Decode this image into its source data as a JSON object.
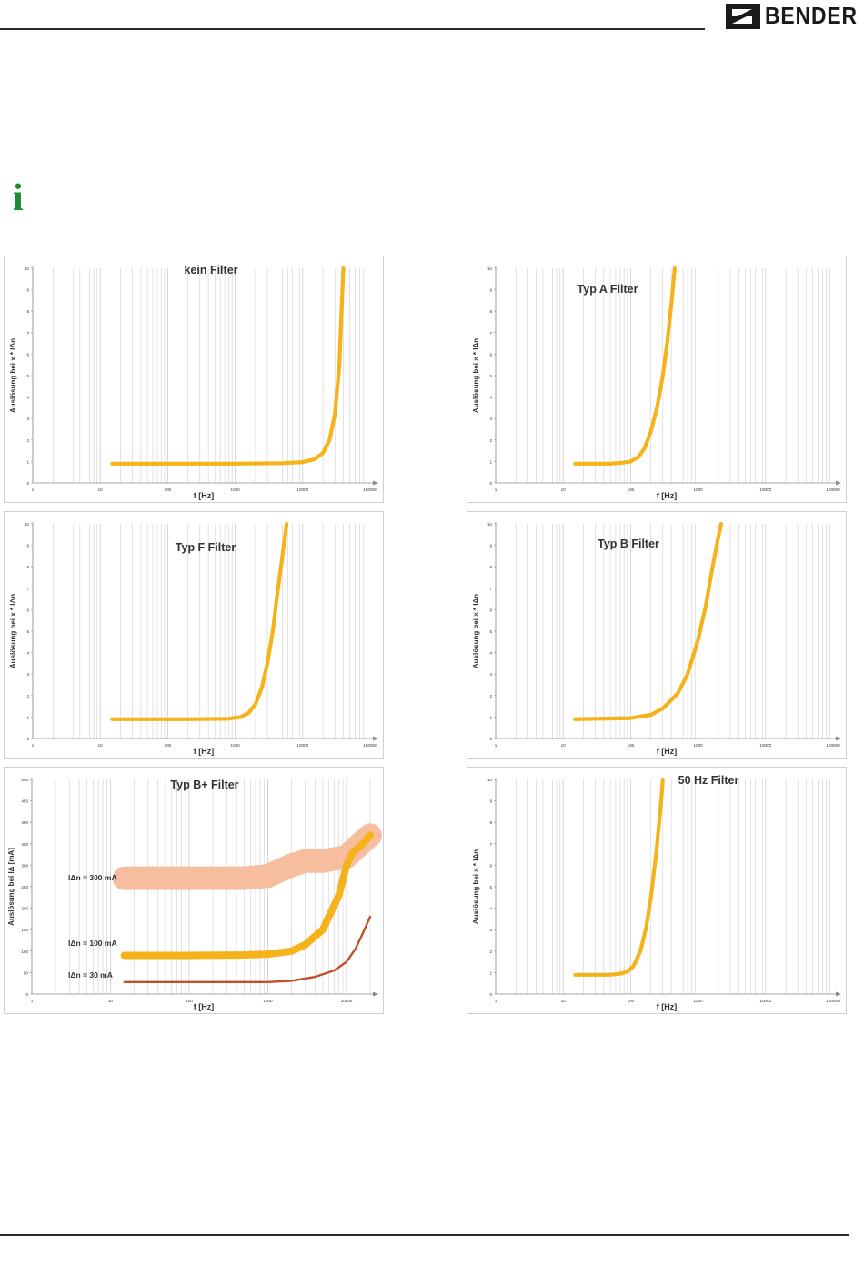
{
  "header": {
    "brand": "BENDER",
    "info_icon": "info-icon"
  },
  "colors": {
    "curve": "#f5b21a",
    "band300": "#f6bd9f",
    "curve30": "#c0502a",
    "grid": "#cfcfcf",
    "icon": "#1d8a3a"
  },
  "chart_data": [
    {
      "type": "line",
      "title": "kein Filter",
      "ylabel": "Auslösung bei x * IΔn",
      "xlabel": "f [Hz]",
      "x_scale": "log",
      "xlim": [
        1,
        100000
      ],
      "ylim": [
        0,
        10
      ],
      "xticks": [
        "1",
        "10",
        "100",
        "1000",
        "10000",
        "100000"
      ],
      "yticks": [
        "0",
        "1",
        "2",
        "3",
        "4",
        "5",
        "6",
        "7",
        "8",
        "9",
        "10"
      ],
      "series": [
        {
          "x": [
            15,
            100,
            1000,
            5000,
            10000,
            15000,
            20000,
            25000,
            30000,
            35000,
            37000,
            40000
          ],
          "y": [
            0.9,
            0.9,
            0.9,
            0.92,
            0.97,
            1.1,
            1.4,
            2.0,
            3.2,
            5.5,
            7.5,
            10
          ]
        }
      ]
    },
    {
      "type": "line",
      "title": "Typ A Filter",
      "ylabel": "Auslösung bei x * IΔn",
      "xlabel": "f [Hz]",
      "x_scale": "log",
      "xlim": [
        1,
        100000
      ],
      "ylim": [
        0,
        10
      ],
      "xticks": [
        "1",
        "10",
        "100",
        "1000",
        "10000",
        "100000"
      ],
      "yticks": [
        "0",
        "1",
        "2",
        "3",
        "4",
        "5",
        "6",
        "7",
        "8",
        "9",
        "10"
      ],
      "series": [
        {
          "x": [
            15,
            50,
            80,
            100,
            130,
            160,
            200,
            250,
            300,
            350,
            400,
            450
          ],
          "y": [
            0.9,
            0.9,
            0.95,
            1.0,
            1.2,
            1.6,
            2.4,
            3.6,
            5.0,
            6.6,
            8.3,
            10
          ]
        }
      ]
    },
    {
      "type": "line",
      "title": "Typ F Filter",
      "ylabel": "Auslösung bei x * IΔn",
      "xlabel": "f [Hz]",
      "x_scale": "log",
      "xlim": [
        1,
        100000
      ],
      "ylim": [
        0,
        10
      ],
      "xticks": [
        "1",
        "10",
        "100",
        "1000",
        "10000",
        "100000"
      ],
      "yticks": [
        "0",
        "1",
        "2",
        "3",
        "4",
        "5",
        "6",
        "7",
        "8",
        "9",
        "10"
      ],
      "series": [
        {
          "x": [
            15,
            200,
            800,
            1200,
            1600,
            2000,
            2500,
            3000,
            3600,
            4200,
            5000,
            5800
          ],
          "y": [
            0.9,
            0.9,
            0.92,
            1.0,
            1.2,
            1.6,
            2.4,
            3.5,
            5.0,
            6.7,
            8.5,
            10
          ]
        }
      ]
    },
    {
      "type": "line",
      "title": "Typ B Filter",
      "ylabel": "Auslösung bei x * IΔn",
      "xlabel": "f [Hz]",
      "x_scale": "log",
      "xlim": [
        1,
        100000
      ],
      "ylim": [
        0,
        10
      ],
      "xticks": [
        "1",
        "10",
        "100",
        "1000",
        "10000",
        "100000"
      ],
      "yticks": [
        "0",
        "1",
        "2",
        "3",
        "4",
        "5",
        "6",
        "7",
        "8",
        "9",
        "10"
      ],
      "series": [
        {
          "x": [
            15,
            100,
            200,
            300,
            500,
            700,
            1000,
            1300,
            1600,
            2000,
            2200
          ],
          "y": [
            0.9,
            0.95,
            1.1,
            1.4,
            2.1,
            3.0,
            4.6,
            6.2,
            7.8,
            9.4,
            10
          ]
        }
      ]
    },
    {
      "type": "line",
      "title": "Typ B+ Filter",
      "ylabel": "Auslösung bei IΔ [mA]",
      "xlabel": "f [Hz]",
      "x_scale": "log",
      "xlim": [
        1,
        20000
      ],
      "ylim": [
        0,
        500
      ],
      "xticks": [
        "1",
        "10",
        "100",
        "1000",
        "10000"
      ],
      "yticks": [
        "0",
        "50",
        "100",
        "150",
        "200",
        "250",
        "300",
        "350",
        "400",
        "450",
        "500"
      ],
      "series": [
        {
          "name": "IΔn = 300 mA",
          "x": [
            15,
            100,
            500,
            1000,
            2000,
            3000,
            5000,
            10000,
            15000,
            20000
          ],
          "y": [
            270,
            270,
            270,
            275,
            300,
            310,
            310,
            320,
            350,
            370
          ]
        },
        {
          "name": "IΔn = 100 mA",
          "x": [
            15,
            100,
            500,
            1000,
            2000,
            3000,
            5000,
            8000,
            10000,
            12000,
            15000,
            20000
          ],
          "y": [
            90,
            90,
            91,
            93,
            100,
            115,
            150,
            230,
            300,
            330,
            345,
            370
          ]
        },
        {
          "name": "IΔn = 30 mA",
          "x": [
            15,
            100,
            1000,
            2000,
            4000,
            7000,
            10000,
            13000,
            16000,
            20000
          ],
          "y": [
            28,
            28,
            28,
            31,
            40,
            55,
            75,
            105,
            140,
            180
          ]
        }
      ],
      "labels": [
        {
          "series": 0,
          "text": "IΔn = 300 mA"
        },
        {
          "series": 1,
          "text": "IΔn = 100 mA"
        },
        {
          "series": 2,
          "text": "IΔn = 30 mA"
        }
      ]
    },
    {
      "type": "line",
      "title": "50 Hz Filter",
      "ylabel": "Auslösung bei x * IΔn",
      "xlabel": "f [Hz]",
      "x_scale": "log",
      "xlim": [
        1,
        100000
      ],
      "ylim": [
        0,
        10
      ],
      "xticks": [
        "1",
        "10",
        "100",
        "1000",
        "10000",
        "100000"
      ],
      "yticks": [
        "0",
        "1",
        "2",
        "3",
        "4",
        "5",
        "6",
        "7",
        "8",
        "9",
        "10"
      ],
      "series": [
        {
          "x": [
            15,
            50,
            70,
            90,
            110,
            140,
            170,
            200,
            240,
            280,
            300
          ],
          "y": [
            0.9,
            0.9,
            0.95,
            1.05,
            1.3,
            2.0,
            3.1,
            4.5,
            6.6,
            8.8,
            10
          ]
        }
      ]
    }
  ]
}
